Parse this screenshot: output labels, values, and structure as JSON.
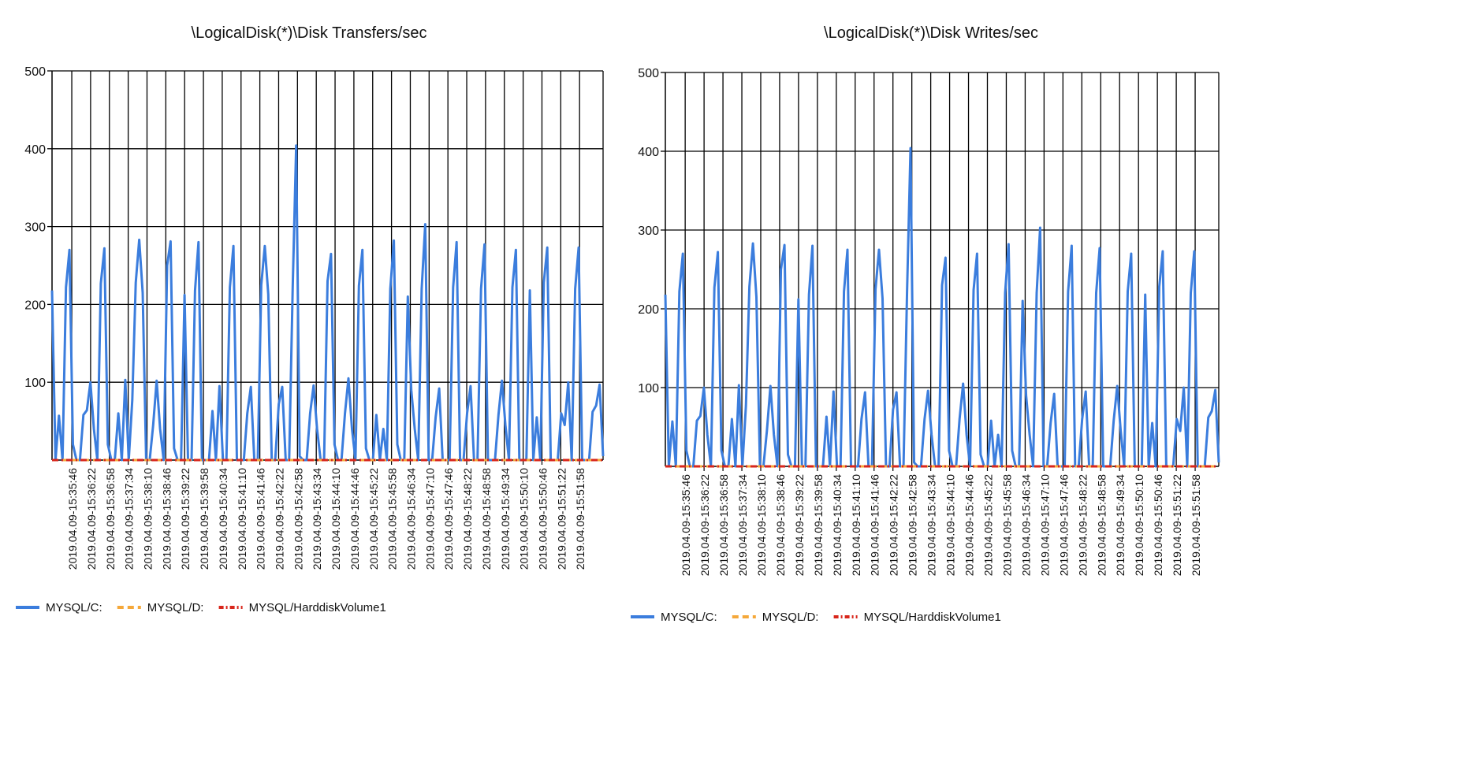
{
  "chart_data": [
    {
      "type": "line",
      "title": "\\LogicalDisk(*)\\Disk Transfers/sec",
      "xlabel": "",
      "ylabel": "",
      "ylim": [
        0,
        500
      ],
      "yticks": [
        100,
        200,
        300,
        400,
        500
      ],
      "grid": true,
      "legend_position": "bottom-left",
      "x_tick_labels": [
        "2019.04.09-15:35:46",
        "2019.04.09-15:36:22",
        "2019.04.09-15:36:58",
        "2019.04.09-15:37:34",
        "2019.04.09-15:38:10",
        "2019.04.09-15:38:46",
        "2019.04.09-15:39:22",
        "2019.04.09-15:39:58",
        "2019.04.09-15:40:34",
        "2019.04.09-15:41:10",
        "2019.04.09-15:41:46",
        "2019.04.09-15:42:22",
        "2019.04.09-15:42:58",
        "2019.04.09-15:43:34",
        "2019.04.09-15:44:10",
        "2019.04.09-15:44:46",
        "2019.04.09-15:45:22",
        "2019.04.09-15:45:58",
        "2019.04.09-15:46:34",
        "2019.04.09-15:47:10",
        "2019.04.09-15:47:46",
        "2019.04.09-15:48:22",
        "2019.04.09-15:48:58",
        "2019.04.09-15:49:34",
        "2019.04.09-15:50:10",
        "2019.04.09-15:50:46",
        "2019.04.09-15:51:22",
        "2019.04.09-15:51:58"
      ],
      "series": [
        {
          "name": "MYSQL/C:",
          "color": "#3b7ddd",
          "style": "solid",
          "values": [
            218,
            0,
            57,
            0,
            222,
            270,
            20,
            0,
            0,
            58,
            64,
            100,
            40,
            0,
            227,
            272,
            20,
            0,
            0,
            60,
            0,
            103,
            0,
            77,
            228,
            283,
            215,
            0,
            0,
            45,
            102,
            40,
            0,
            250,
            281,
            15,
            0,
            0,
            212,
            0,
            0,
            218,
            280,
            0,
            0,
            0,
            63,
            0,
            95,
            0,
            0,
            222,
            275,
            0,
            0,
            0,
            60,
            94,
            0,
            0,
            225,
            275,
            213,
            0,
            0,
            72,
            94,
            0,
            0,
            222,
            404,
            5,
            0,
            0,
            60,
            96,
            40,
            0,
            0,
            230,
            265,
            20,
            0,
            0,
            60,
            105,
            40,
            0,
            224,
            270,
            15,
            0,
            0,
            58,
            0,
            40,
            0,
            220,
            282,
            20,
            0,
            0,
            210,
            90,
            40,
            0,
            220,
            303,
            0,
            0,
            55,
            92,
            0,
            0,
            0,
            222,
            280,
            0,
            0,
            60,
            95,
            0,
            0,
            220,
            277,
            0,
            0,
            0,
            58,
            102,
            45,
            0,
            222,
            270,
            0,
            0,
            0,
            218,
            0,
            55,
            0,
            228,
            273,
            0,
            0,
            0,
            60,
            45,
            100,
            0,
            220,
            273,
            0,
            0,
            0,
            62,
            70,
            97,
            5
          ]
        },
        {
          "name": "MYSQL/D:",
          "color": "#f5a83a",
          "style": "dashed",
          "values": [
            0,
            0,
            0,
            0,
            0,
            0,
            0,
            0,
            0,
            0,
            0,
            0,
            0,
            0,
            0,
            0,
            0,
            0,
            0,
            0,
            0,
            0,
            0,
            0,
            0,
            0,
            0,
            0,
            0,
            0
          ]
        },
        {
          "name": "MYSQL/HarddiskVolume1",
          "color": "#d8261b",
          "style": "dashdot",
          "values": [
            0,
            0,
            0,
            0,
            0,
            0,
            0,
            0,
            0,
            0,
            0,
            0,
            0,
            0,
            0,
            0,
            0,
            0,
            0,
            0,
            0,
            0,
            0,
            0,
            0,
            0,
            0,
            0,
            0,
            0
          ]
        }
      ]
    },
    {
      "type": "line",
      "title": "\\LogicalDisk(*)\\Disk Writes/sec",
      "xlabel": "",
      "ylabel": "",
      "ylim": [
        0,
        500
      ],
      "yticks": [
        100,
        200,
        300,
        400,
        500
      ],
      "grid": true,
      "legend_position": "bottom-left",
      "x_tick_labels": [
        "2019.04.09-15:35:46",
        "2019.04.09-15:36:22",
        "2019.04.09-15:36:58",
        "2019.04.09-15:37:34",
        "2019.04.09-15:38:10",
        "2019.04.09-15:38:46",
        "2019.04.09-15:39:22",
        "2019.04.09-15:39:58",
        "2019.04.09-15:40:34",
        "2019.04.09-15:41:10",
        "2019.04.09-15:41:46",
        "2019.04.09-15:42:22",
        "2019.04.09-15:42:58",
        "2019.04.09-15:43:34",
        "2019.04.09-15:44:10",
        "2019.04.09-15:44:46",
        "2019.04.09-15:45:22",
        "2019.04.09-15:45:58",
        "2019.04.09-15:46:34",
        "2019.04.09-15:47:10",
        "2019.04.09-15:47:46",
        "2019.04.09-15:48:22",
        "2019.04.09-15:48:58",
        "2019.04.09-15:49:34",
        "2019.04.09-15:50:10",
        "2019.04.09-15:50:46",
        "2019.04.09-15:51:22",
        "2019.04.09-15:51:58"
      ],
      "series": [
        {
          "name": "MYSQL/C:",
          "color": "#3b7ddd",
          "style": "solid",
          "values": [
            218,
            0,
            57,
            0,
            222,
            270,
            20,
            0,
            0,
            58,
            64,
            100,
            40,
            0,
            227,
            272,
            20,
            0,
            0,
            60,
            0,
            103,
            0,
            77,
            228,
            283,
            215,
            0,
            0,
            45,
            102,
            40,
            0,
            250,
            281,
            15,
            0,
            0,
            212,
            0,
            0,
            218,
            280,
            0,
            0,
            0,
            63,
            0,
            95,
            0,
            0,
            222,
            275,
            0,
            0,
            0,
            60,
            94,
            0,
            0,
            225,
            275,
            213,
            0,
            0,
            72,
            94,
            0,
            0,
            222,
            404,
            5,
            0,
            0,
            60,
            96,
            40,
            0,
            0,
            230,
            265,
            20,
            0,
            0,
            60,
            105,
            40,
            0,
            224,
            270,
            15,
            0,
            0,
            58,
            0,
            40,
            0,
            220,
            282,
            20,
            0,
            0,
            210,
            90,
            40,
            0,
            220,
            303,
            0,
            0,
            55,
            92,
            0,
            0,
            0,
            222,
            280,
            0,
            0,
            60,
            95,
            0,
            0,
            220,
            277,
            0,
            0,
            0,
            58,
            102,
            45,
            0,
            222,
            270,
            0,
            0,
            0,
            218,
            0,
            55,
            0,
            228,
            273,
            0,
            0,
            0,
            60,
            45,
            100,
            0,
            220,
            273,
            0,
            0,
            0,
            62,
            70,
            97,
            5
          ]
        },
        {
          "name": "MYSQL/D:",
          "color": "#f5a83a",
          "style": "dashed",
          "values": [
            0,
            0,
            0,
            0,
            0,
            0,
            0,
            0,
            0,
            0,
            0,
            0,
            0,
            0,
            0,
            0,
            0,
            0,
            0,
            0,
            0,
            0,
            0,
            0,
            0,
            0,
            0,
            0,
            0,
            0
          ]
        },
        {
          "name": "MYSQL/HarddiskVolume1",
          "color": "#d8261b",
          "style": "dashdot",
          "values": [
            0,
            0,
            0,
            0,
            0,
            0,
            0,
            0,
            0,
            0,
            0,
            0,
            0,
            0,
            0,
            0,
            0,
            0,
            0,
            0,
            0,
            0,
            0,
            0,
            0,
            0,
            0,
            0,
            0,
            0
          ]
        }
      ]
    }
  ]
}
